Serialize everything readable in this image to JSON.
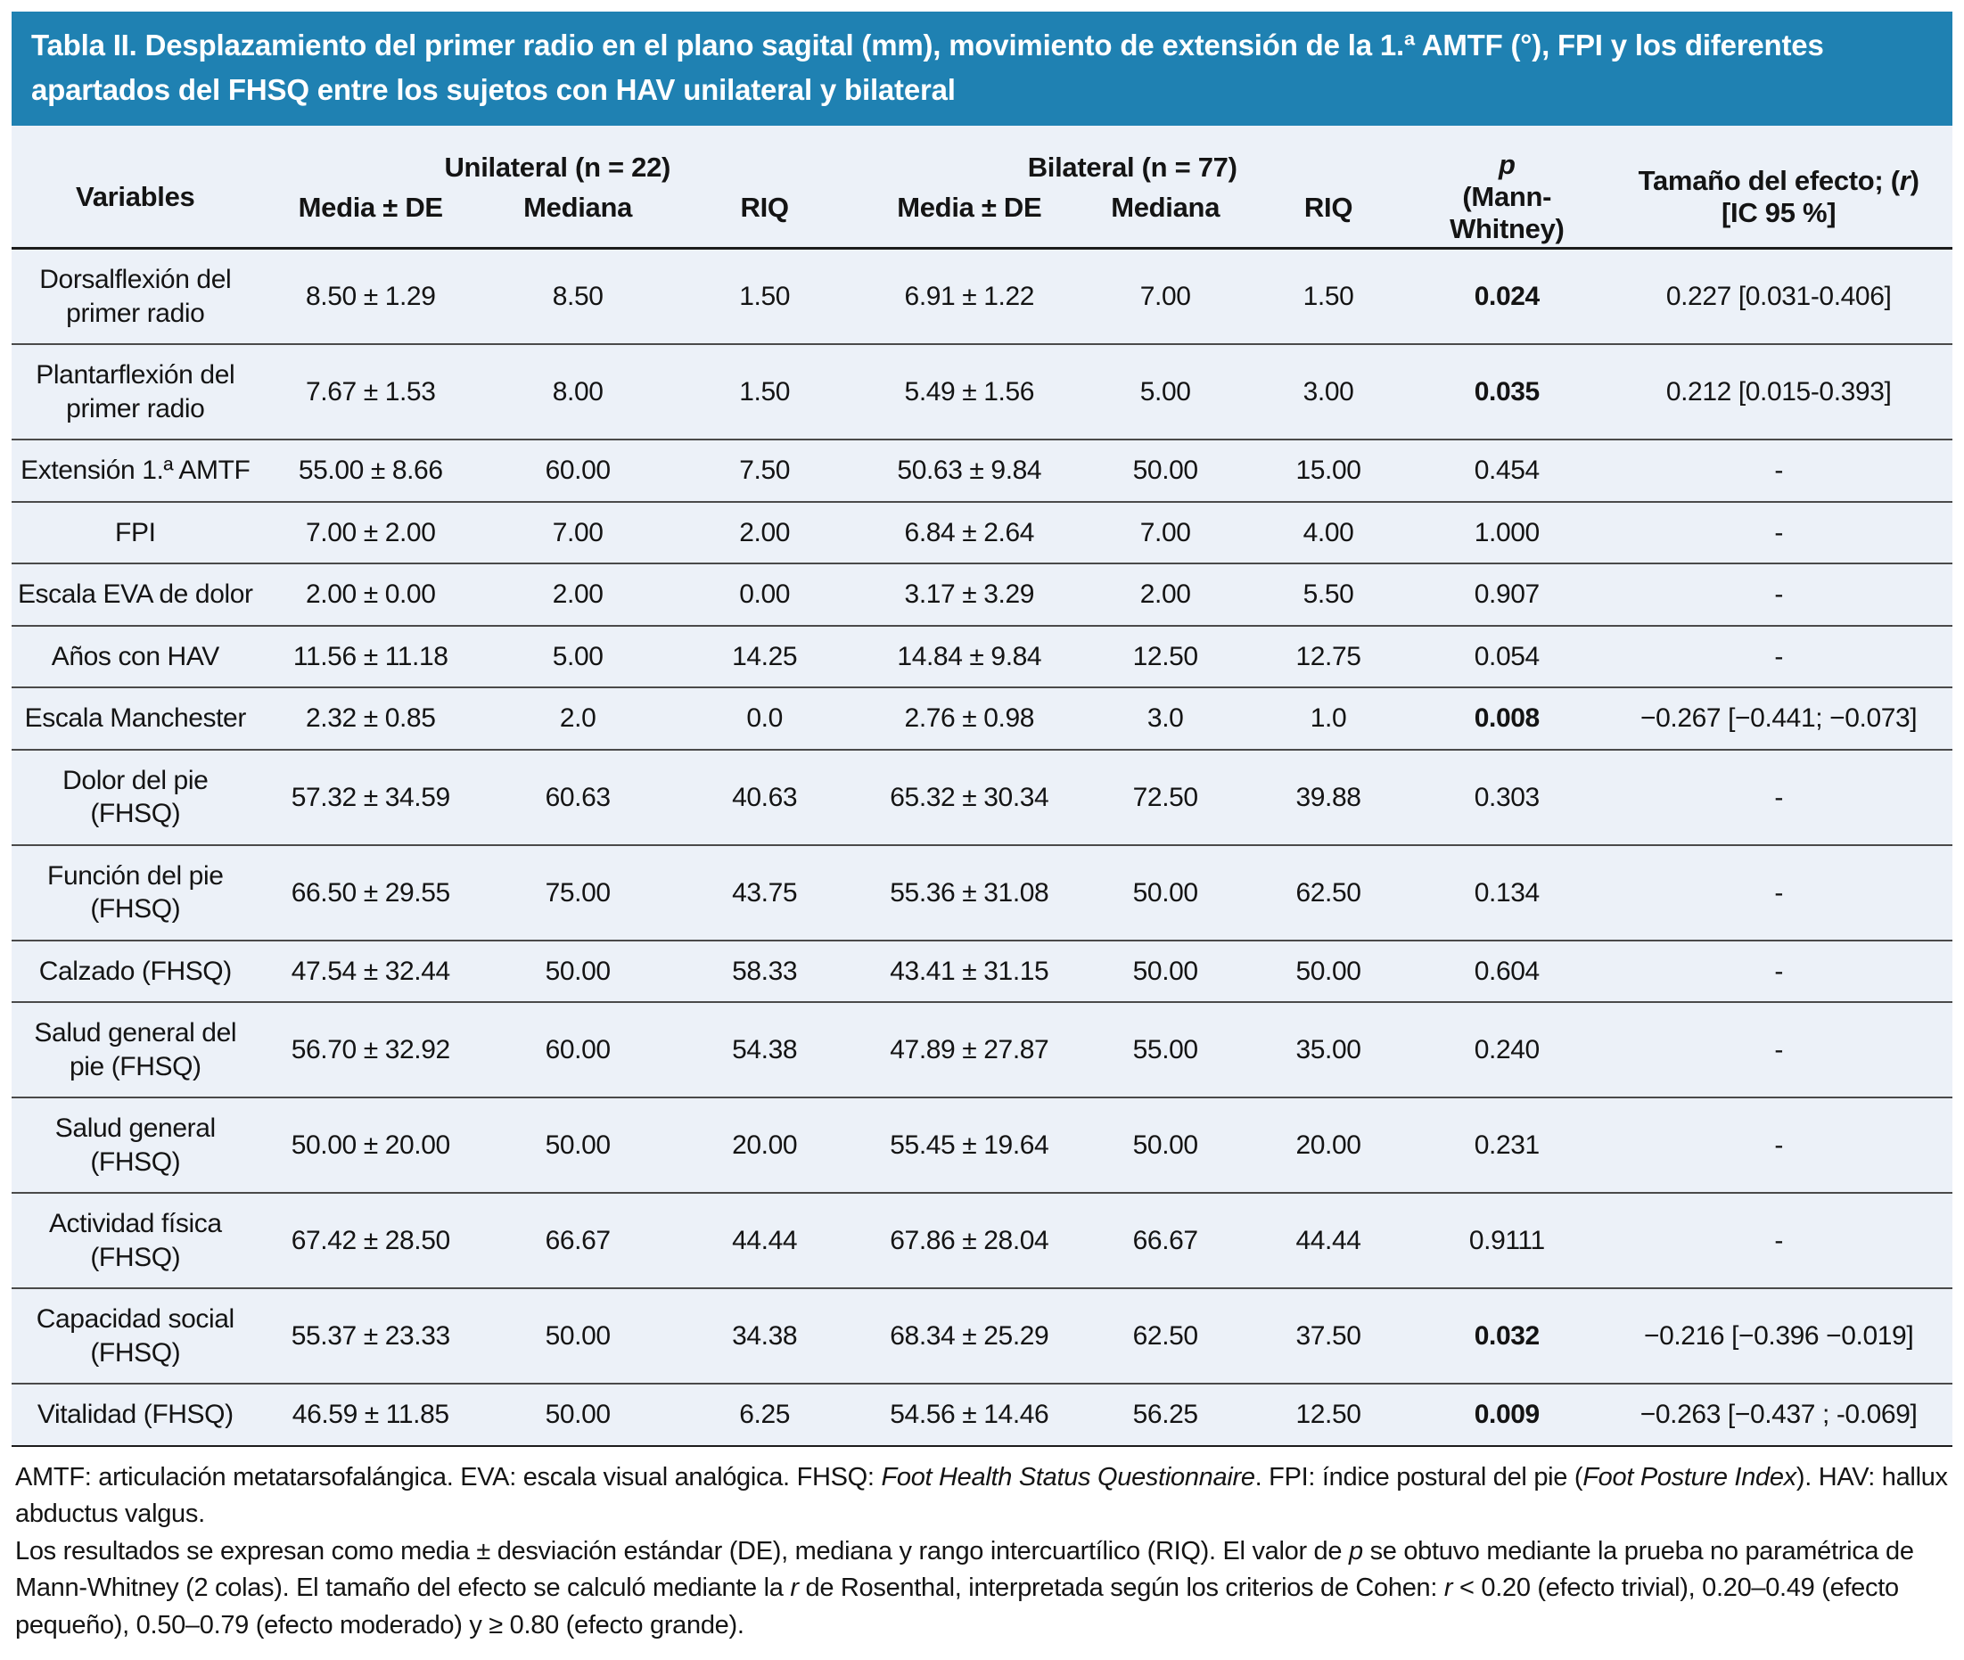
{
  "colors": {
    "band_blue": "#1F81B2",
    "body_bg": "#ECF1F8",
    "text": "#141414",
    "rule_dark": "#1c1c1c",
    "rule_gray": "#4a4a4a"
  },
  "title": "Tabla II. Desplazamiento del primer radio en el plano sagital (mm), movimiento de extensión de la 1.ª AMTF (°), FPI y los diferentes apartados del FHSQ entre los sujetos con HAV unilateral y bilateral",
  "header": {
    "variables": "Variables",
    "unilateral": "Unilateral (n = 22)",
    "bilateral": "Bilateral (n = 77)",
    "sub_mean": "Media ± DE",
    "sub_median": "Mediana",
    "sub_riq": "RIQ",
    "p_symbol": "p",
    "p_line2": "(Mann-",
    "p_line3": "Whitney)",
    "effect_prefix": "Tamaño del efecto; (",
    "effect_r": "r",
    "effect_suffix": ")",
    "effect_line2": "[IC 95 %]"
  },
  "rows": [
    {
      "label": "Dorsalflexión del primer radio",
      "u_mean": "8.50 ± 1.29",
      "u_median": "8.50",
      "u_riq": "1.50",
      "b_mean": "6.91 ± 1.22",
      "b_median": "7.00",
      "b_riq": "1.50",
      "p": "0.024",
      "p_bold": true,
      "effect": "0.227 [0.031-0.406]"
    },
    {
      "label": "Plantarflexión del primer radio",
      "u_mean": "7.67 ± 1.53",
      "u_median": "8.00",
      "u_riq": "1.50",
      "b_mean": "5.49 ± 1.56",
      "b_median": "5.00",
      "b_riq": "3.00",
      "p": "0.035",
      "p_bold": true,
      "effect": "0.212 [0.015-0.393]"
    },
    {
      "label": "Extensión 1.ª AMTF",
      "u_mean": "55.00 ± 8.66",
      "u_median": "60.00",
      "u_riq": "7.50",
      "b_mean": "50.63 ± 9.84",
      "b_median": "50.00",
      "b_riq": "15.00",
      "p": "0.454",
      "p_bold": false,
      "effect": "-"
    },
    {
      "label": "FPI",
      "u_mean": "7.00 ± 2.00",
      "u_median": "7.00",
      "u_riq": "2.00",
      "b_mean": "6.84 ± 2.64",
      "b_median": "7.00",
      "b_riq": "4.00",
      "p": "1.000",
      "p_bold": false,
      "effect": "-"
    },
    {
      "label": "Escala EVA de dolor",
      "u_mean": "2.00 ± 0.00",
      "u_median": "2.00",
      "u_riq": "0.00",
      "b_mean": "3.17 ± 3.29",
      "b_median": "2.00",
      "b_riq": "5.50",
      "p": "0.907",
      "p_bold": false,
      "effect": "-"
    },
    {
      "label": "Años con HAV",
      "u_mean": "11.56 ± 11.18",
      "u_median": "5.00",
      "u_riq": "14.25",
      "b_mean": "14.84 ± 9.84",
      "b_median": "12.50",
      "b_riq": "12.75",
      "p": "0.054",
      "p_bold": false,
      "effect": "-"
    },
    {
      "label": "Escala Manchester",
      "u_mean": "2.32 ± 0.85",
      "u_median": "2.0",
      "u_riq": "0.0",
      "b_mean": "2.76 ± 0.98",
      "b_median": "3.0",
      "b_riq": "1.0",
      "p": "0.008",
      "p_bold": true,
      "effect": "−0.267 [−0.441; −0.073]"
    },
    {
      "label": "Dolor del pie (FHSQ)",
      "u_mean": "57.32 ± 34.59",
      "u_median": "60.63",
      "u_riq": "40.63",
      "b_mean": "65.32 ± 30.34",
      "b_median": "72.50",
      "b_riq": "39.88",
      "p": "0.303",
      "p_bold": false,
      "effect": "-"
    },
    {
      "label": "Función del pie (FHSQ)",
      "u_mean": "66.50 ± 29.55",
      "u_median": "75.00",
      "u_riq": "43.75",
      "b_mean": "55.36 ± 31.08",
      "b_median": "50.00",
      "b_riq": "62.50",
      "p": "0.134",
      "p_bold": false,
      "effect": "-"
    },
    {
      "label": "Calzado (FHSQ)",
      "u_mean": "47.54 ± 32.44",
      "u_median": "50.00",
      "u_riq": "58.33",
      "b_mean": "43.41 ± 31.15",
      "b_median": "50.00",
      "b_riq": "50.00",
      "p": "0.604",
      "p_bold": false,
      "effect": "-"
    },
    {
      "label": "Salud general del pie (FHSQ)",
      "u_mean": "56.70 ± 32.92",
      "u_median": "60.00",
      "u_riq": "54.38",
      "b_mean": "47.89 ± 27.87",
      "b_median": "55.00",
      "b_riq": "35.00",
      "p": "0.240",
      "p_bold": false,
      "effect": "-"
    },
    {
      "label": "Salud general (FHSQ)",
      "u_mean": "50.00 ± 20.00",
      "u_median": "50.00",
      "u_riq": "20.00",
      "b_mean": "55.45 ± 19.64",
      "b_median": "50.00",
      "b_riq": "20.00",
      "p": "0.231",
      "p_bold": false,
      "effect": "-"
    },
    {
      "label": "Actividad física (FHSQ)",
      "u_mean": "67.42 ± 28.50",
      "u_median": "66.67",
      "u_riq": "44.44",
      "b_mean": "67.86 ± 28.04",
      "b_median": "66.67",
      "b_riq": "44.44",
      "p": "0.9111",
      "p_bold": false,
      "effect": "-"
    },
    {
      "label": "Capacidad social (FHSQ)",
      "u_mean": "55.37 ± 23.33",
      "u_median": "50.00",
      "u_riq": "34.38",
      "b_mean": "68.34 ± 25.29",
      "b_median": "62.50",
      "b_riq": "37.50",
      "p": "0.032",
      "p_bold": true,
      "effect": "−0.216 [−0.396 −0.019]"
    },
    {
      "label": "Vitalidad (FHSQ)",
      "u_mean": "46.59 ± 11.85",
      "u_median": "50.00",
      "u_riq": "6.25",
      "b_mean": "54.56 ± 14.46",
      "b_median": "56.25",
      "b_riq": "12.50",
      "p": "0.009",
      "p_bold": true,
      "effect": "−0.263 [−0.437 ; -0.069]"
    }
  ],
  "footnotes": [
    [
      {
        "text": "AMTF: articulación metatarsofalángica. EVA: escala visual analógica. FHSQ: ",
        "italic": false
      },
      {
        "text": "Foot Health Status Questionnaire",
        "italic": true
      },
      {
        "text": ". FPI: índice postural del pie (",
        "italic": false
      },
      {
        "text": "Foot Posture Index",
        "italic": true
      },
      {
        "text": "). HAV: hallux abductus valgus.",
        "italic": false
      }
    ],
    [
      {
        "text": "Los resultados se expresan como media ± desviación estándar (DE), mediana y rango intercuartílico (RIQ). El valor de ",
        "italic": false
      },
      {
        "text": "p",
        "italic": true
      },
      {
        "text": " se obtuvo mediante la prueba no paramétrica de Mann-Whitney (2 colas). El tamaño del efecto se calculó mediante la ",
        "italic": false
      },
      {
        "text": "r",
        "italic": true
      },
      {
        "text": " de Rosenthal, interpretada según los criterios de Cohen: ",
        "italic": false
      },
      {
        "text": "r",
        "italic": true
      },
      {
        "text": " < 0.20 (efecto trivial), 0.20–0.49 (efecto pequeño), 0.50–0.79 (efecto moderado) y ≥ 0.80 (efecto grande).",
        "italic": false
      }
    ]
  ]
}
